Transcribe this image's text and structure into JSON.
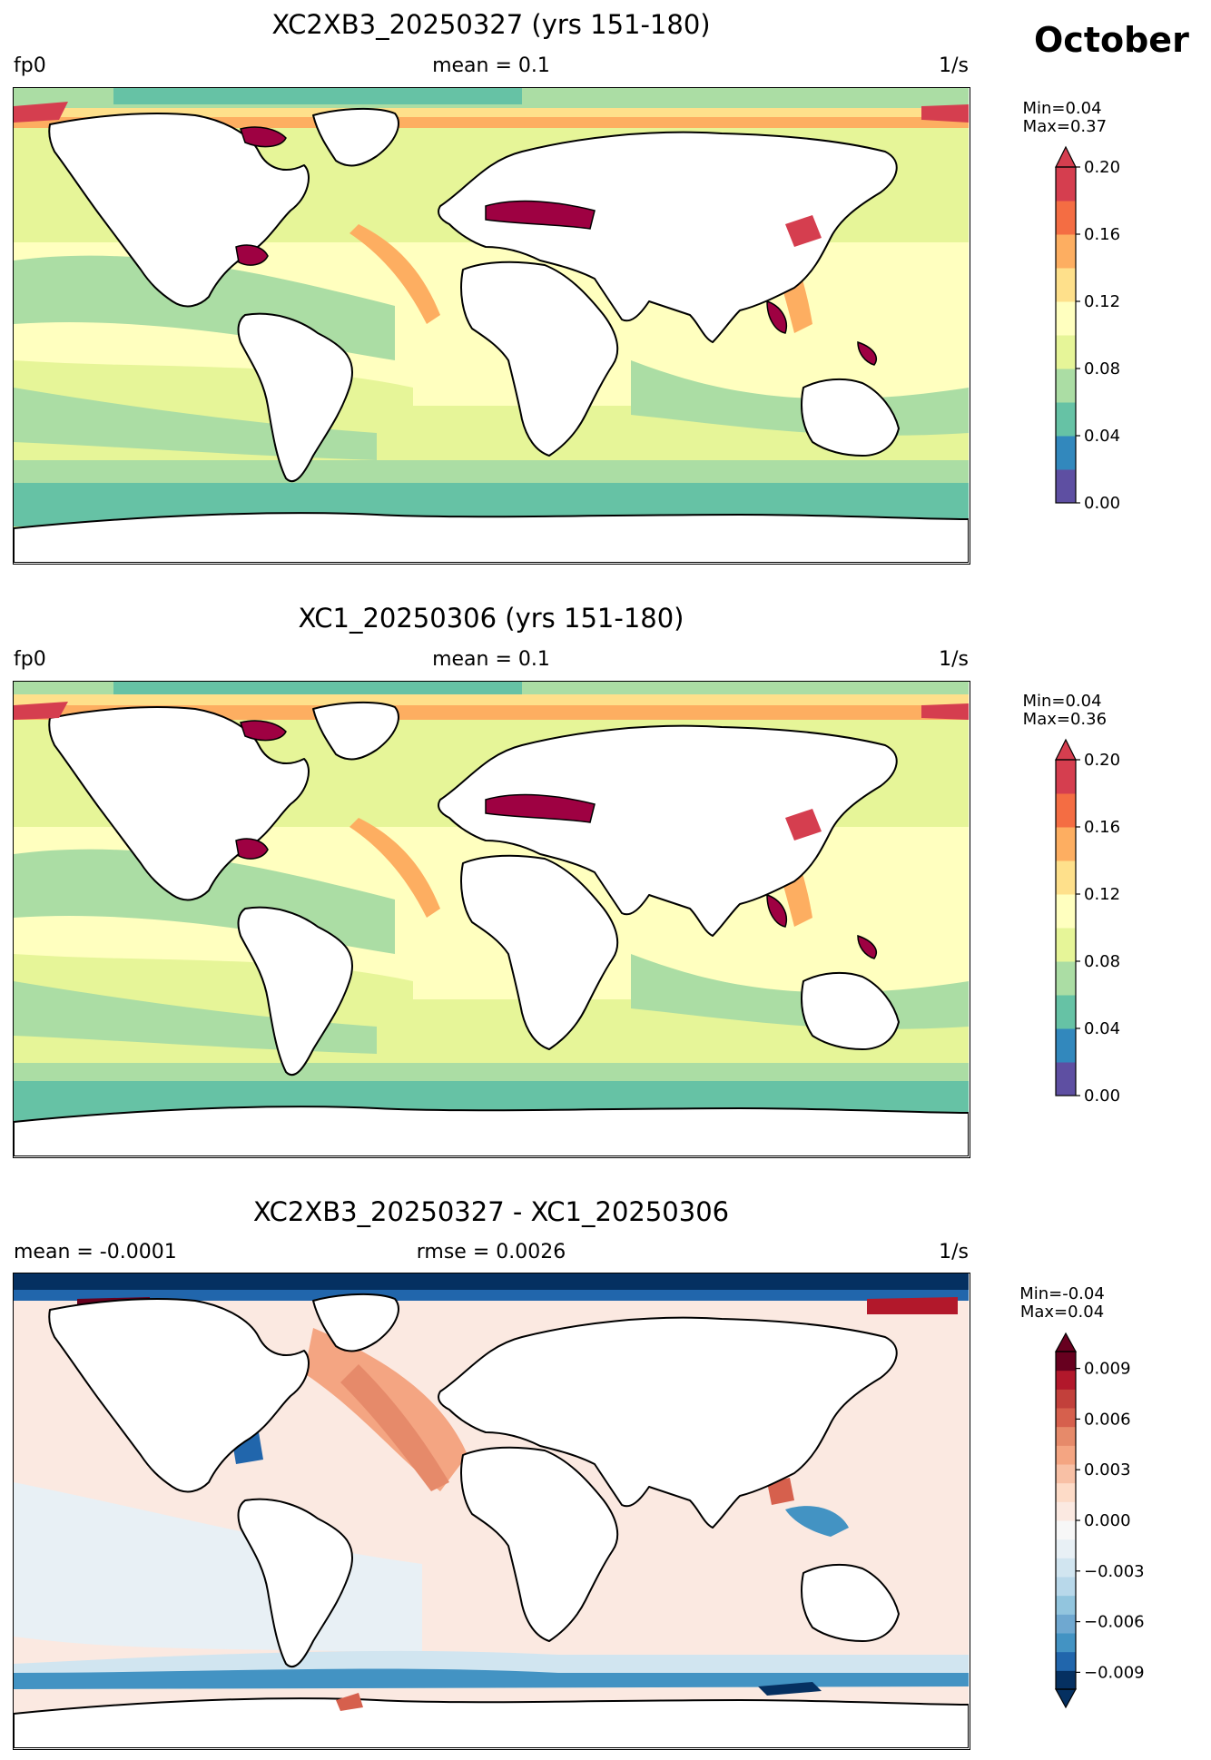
{
  "header": {
    "month": "October"
  },
  "colors": {
    "seq_bins": [
      "#5e4fa2",
      "#3288bd",
      "#66c2a5",
      "#abdda4",
      "#e6f598",
      "#ffffbf",
      "#fee08b",
      "#fdae61",
      "#f46d43",
      "#d53e4f",
      "#9e0142"
    ],
    "diff_bins": [
      "#053061",
      "#2166ac",
      "#4393c3",
      "#6fa8d0",
      "#92c5de",
      "#b8d8ea",
      "#d1e5f0",
      "#e8f0f5",
      "#f7f7f7",
      "#fbe9e1",
      "#fddbc7",
      "#f8c0a5",
      "#f4a582",
      "#e68a6a",
      "#d6604d",
      "#c2403b",
      "#b2182b",
      "#67001f"
    ],
    "land": "#ffffff",
    "coast": "#000000"
  },
  "panels": [
    {
      "title": "XC2XB3_20250327 (yrs 151-180)",
      "left_label": "fp0",
      "center_label": "mean = 0.1",
      "right_label": "1/s",
      "minmax": "Min=0.04\n Max=0.37",
      "colorbar": {
        "ticks": [
          "0.00",
          "0.04",
          "0.08",
          "0.12",
          "0.16",
          "0.20"
        ],
        "extend": "max",
        "min": 0.0,
        "max": 0.2,
        "field_mean": 0.1
      }
    },
    {
      "title": "XC1_20250306 (yrs 151-180)",
      "left_label": "fp0",
      "center_label": "mean = 0.1",
      "right_label": "1/s",
      "minmax": "Min=0.04\n Max=0.36",
      "colorbar": {
        "ticks": [
          "0.00",
          "0.04",
          "0.08",
          "0.12",
          "0.16",
          "0.20"
        ],
        "extend": "max",
        "min": 0.0,
        "max": 0.2,
        "field_mean": 0.1
      }
    },
    {
      "title": "XC2XB3_20250327 - XC1_20250306",
      "left_label": "mean = -0.0001",
      "center_label": "rmse = 0.0026",
      "right_label": "1/s",
      "minmax": "Min=-0.04\nMax=0.04",
      "colorbar": {
        "ticks": [
          "0.009",
          "0.006",
          "0.003",
          "0.000",
          "−0.003",
          "−0.006",
          "−0.009"
        ],
        "extend": "both",
        "min": -0.01,
        "max": 0.01,
        "field_mean": -0.0001
      }
    }
  ]
}
